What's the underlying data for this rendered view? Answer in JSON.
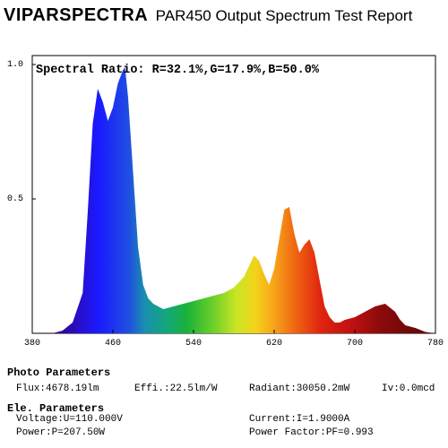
{
  "header": {
    "brand": "VIPARSPECTRA",
    "report_title": "PAR450 Output Spectrum Test Report"
  },
  "chart_data": {
    "type": "area",
    "title": "Spectral Ratio: R=32.1%,G=17.9%,B=50.0%",
    "xlabel": "",
    "ylabel": "",
    "xlim": [
      380,
      780
    ],
    "ylim": [
      0,
      1.0
    ],
    "x_ticks": [
      "380",
      "460",
      "540",
      "620",
      "700",
      "780"
    ],
    "y_ticks": [
      "1.0",
      "0.5"
    ],
    "grid": false,
    "x": [
      380,
      400,
      410,
      420,
      430,
      435,
      440,
      445,
      450,
      455,
      460,
      465,
      470,
      472,
      475,
      480,
      485,
      490,
      495,
      500,
      510,
      520,
      530,
      540,
      550,
      560,
      570,
      580,
      590,
      595,
      600,
      605,
      610,
      615,
      620,
      625,
      630,
      635,
      640,
      645,
      650,
      655,
      660,
      665,
      670,
      675,
      680,
      685,
      690,
      700,
      710,
      720,
      730,
      740,
      745,
      750,
      760,
      770,
      780
    ],
    "y": [
      0.0,
      0.0,
      0.01,
      0.04,
      0.15,
      0.45,
      0.78,
      0.91,
      0.86,
      0.79,
      0.84,
      0.93,
      0.98,
      0.99,
      0.88,
      0.6,
      0.32,
      0.18,
      0.13,
      0.11,
      0.09,
      0.1,
      0.11,
      0.12,
      0.13,
      0.14,
      0.15,
      0.17,
      0.21,
      0.25,
      0.29,
      0.27,
      0.22,
      0.18,
      0.24,
      0.35,
      0.46,
      0.47,
      0.37,
      0.3,
      0.33,
      0.35,
      0.3,
      0.2,
      0.1,
      0.06,
      0.04,
      0.04,
      0.05,
      0.06,
      0.08,
      0.1,
      0.11,
      0.08,
      0.05,
      0.03,
      0.02,
      0.005,
      0.0
    ]
  },
  "photo_params": {
    "heading": "Photo Parameters",
    "flux": "Flux:4678.19lm",
    "effi": "Effi.:22.5lm/W",
    "radiant": "Radiant:30050.2mW",
    "iv": "Iv:0.0mcd"
  },
  "ele_params": {
    "heading": "Ele. Parameters",
    "voltage": "Voltage:U=110.000V",
    "current": "Current:I=1.9000A",
    "power": "Power:P=207.50W",
    "power_factor": "Power Factor:PF=0.993"
  }
}
